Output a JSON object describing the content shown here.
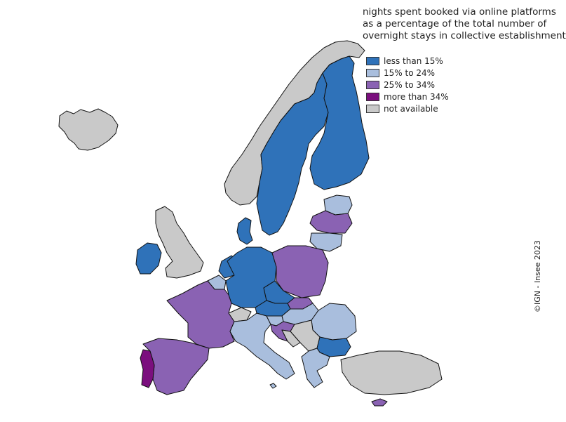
{
  "title_lines": [
    "nights spent booked via online platforms",
    "as a percentage of the total number of",
    "overnight stays in collective establishments"
  ],
  "legend": [
    {
      "label": "less than 15%",
      "color": "#2f72b9"
    },
    {
      "label": "15% to 24%",
      "color": "#a9bedd"
    },
    {
      "label": "25% to 34%",
      "color": "#8a62b3"
    },
    {
      "label": "more than 34%",
      "color": "#7b0f7e"
    },
    {
      "label": "not available",
      "color": "#c9c9c9"
    }
  ],
  "credit": "©IGN - Insee 2023",
  "regions": [
    {
      "name": "Iceland",
      "class": 4
    },
    {
      "name": "Norway",
      "class": 4
    },
    {
      "name": "Sweden",
      "class": 0
    },
    {
      "name": "Finland",
      "class": 0
    },
    {
      "name": "Estonia",
      "class": 1
    },
    {
      "name": "Latvia",
      "class": 2
    },
    {
      "name": "Lithuania",
      "class": 1
    },
    {
      "name": "Denmark",
      "class": 0
    },
    {
      "name": "Ireland",
      "class": 0
    },
    {
      "name": "United Kingdom",
      "class": 4
    },
    {
      "name": "Netherlands",
      "class": 0
    },
    {
      "name": "Belgium",
      "class": 1
    },
    {
      "name": "Luxembourg",
      "class": 1
    },
    {
      "name": "Germany",
      "class": 0
    },
    {
      "name": "Poland",
      "class": 2
    },
    {
      "name": "Czechia",
      "class": 0
    },
    {
      "name": "Slovakia",
      "class": 2
    },
    {
      "name": "Austria",
      "class": 0
    },
    {
      "name": "Hungary",
      "class": 1
    },
    {
      "name": "Switzerland",
      "class": 4
    },
    {
      "name": "France",
      "class": 2
    },
    {
      "name": "Spain",
      "class": 2
    },
    {
      "name": "Portugal",
      "class": 3
    },
    {
      "name": "Italy",
      "class": 1
    },
    {
      "name": "Slovenia",
      "class": 1
    },
    {
      "name": "Croatia",
      "class": 2
    },
    {
      "name": "Romania",
      "class": 1
    },
    {
      "name": "Bulgaria",
      "class": 0
    },
    {
      "name": "Serbia",
      "class": 4
    },
    {
      "name": "Bosnia",
      "class": 4
    },
    {
      "name": "Greece",
      "class": 1
    },
    {
      "name": "Turkey",
      "class": 4
    },
    {
      "name": "Cyprus",
      "class": 2
    },
    {
      "name": "Malta",
      "class": 1
    }
  ]
}
